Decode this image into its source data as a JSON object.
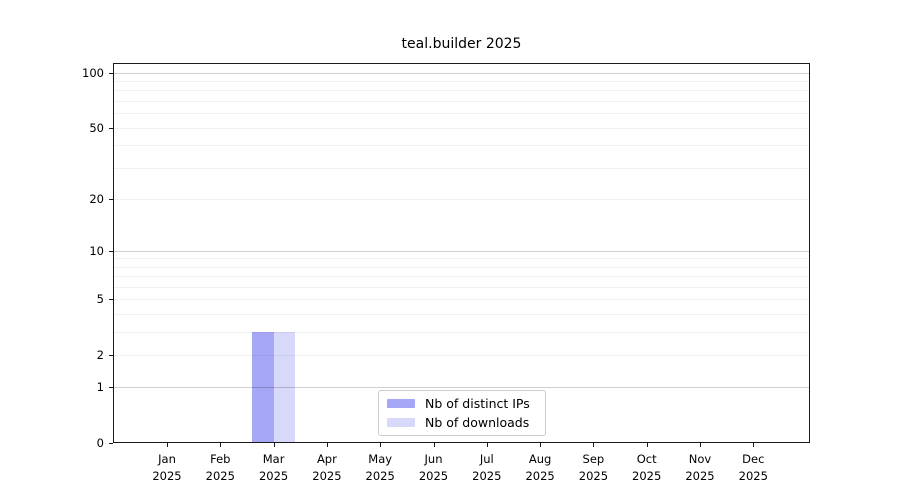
{
  "title": "teal.builder 2025",
  "chart_data": {
    "type": "bar",
    "title": "teal.builder 2025",
    "categories": [
      "Jan",
      "Feb",
      "Mar",
      "Apr",
      "May",
      "Jun",
      "Jul",
      "Aug",
      "Sep",
      "Oct",
      "Nov",
      "Dec"
    ],
    "year_label": "2025",
    "series": [
      {
        "name": "Nb of distinct IPs",
        "color": "#a6a6f7",
        "values": [
          0,
          0,
          3,
          0,
          0,
          0,
          0,
          0,
          0,
          0,
          0,
          0
        ]
      },
      {
        "name": "Nb of downloads",
        "color": "#d8d8fa",
        "values": [
          0,
          0,
          3,
          0,
          0,
          0,
          0,
          0,
          0,
          0,
          0,
          0
        ]
      }
    ],
    "y_scale": "log1p",
    "ylim": [
      0,
      113
    ],
    "y_tick_values": [
      0,
      1,
      2,
      5,
      10,
      20,
      50,
      100
    ],
    "y_major_grid": [
      1,
      10,
      100
    ],
    "y_minor_grid": [
      2,
      3,
      4,
      5,
      6,
      7,
      8,
      9,
      20,
      30,
      40,
      50,
      60,
      70,
      80,
      90
    ],
    "grid": true,
    "legend_position": "lower center"
  },
  "legend": {
    "items": [
      {
        "label": "Nb of distinct IPs",
        "color": "#a6a6f7"
      },
      {
        "label": "Nb of downloads",
        "color": "#d8d8fa"
      }
    ]
  },
  "colors": {
    "background": "#ffffff",
    "axis": "#1a1a1a",
    "bar_distinct_ips": "#a6a6f7",
    "bar_downloads": "#d8d8fa",
    "legend_border": "#cccccc"
  }
}
